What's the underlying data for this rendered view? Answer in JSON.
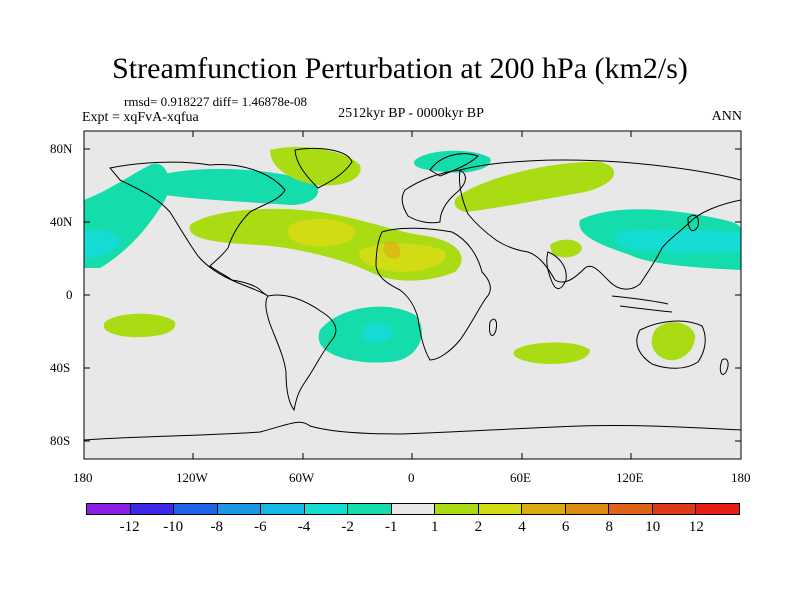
{
  "title": "Streamfunction Perturbation at 200 hPa (km2/s)",
  "stats_text": "rmsd= 0.918227  diff= 1.46878e-08",
  "experiment_text": "Expt = xqFvA-xqfua",
  "period_text": "2512kyr BP - 0000kyr BP",
  "season_text": "ANN",
  "y_axis_labels": [
    "80N",
    "40N",
    "0",
    "40S",
    "80S"
  ],
  "x_axis_labels": [
    "180",
    "120W",
    "60W",
    "0",
    "60E",
    "120E",
    "180"
  ],
  "colorbar": {
    "colors": [
      "#8c1ee6",
      "#3c28e6",
      "#1e64e6",
      "#1e96e6",
      "#14b9e6",
      "#14dcd2",
      "#14dcaa",
      "#e8e8e8",
      "#aadc14",
      "#d2dc14",
      "#dcaa14",
      "#dc8c14",
      "#dc6414",
      "#dc3c14",
      "#e61e14"
    ],
    "labels": [
      "-12",
      "-10",
      "-8",
      "-6",
      "-4",
      "-2",
      "-1",
      "1",
      "2",
      "4",
      "6",
      "8",
      "10",
      "12"
    ]
  },
  "contour_levels": {
    "neg1": "#14dcaa",
    "neg2": "#14dcd2",
    "pos1": "#aadc14",
    "pos2": "#d2dc14"
  }
}
